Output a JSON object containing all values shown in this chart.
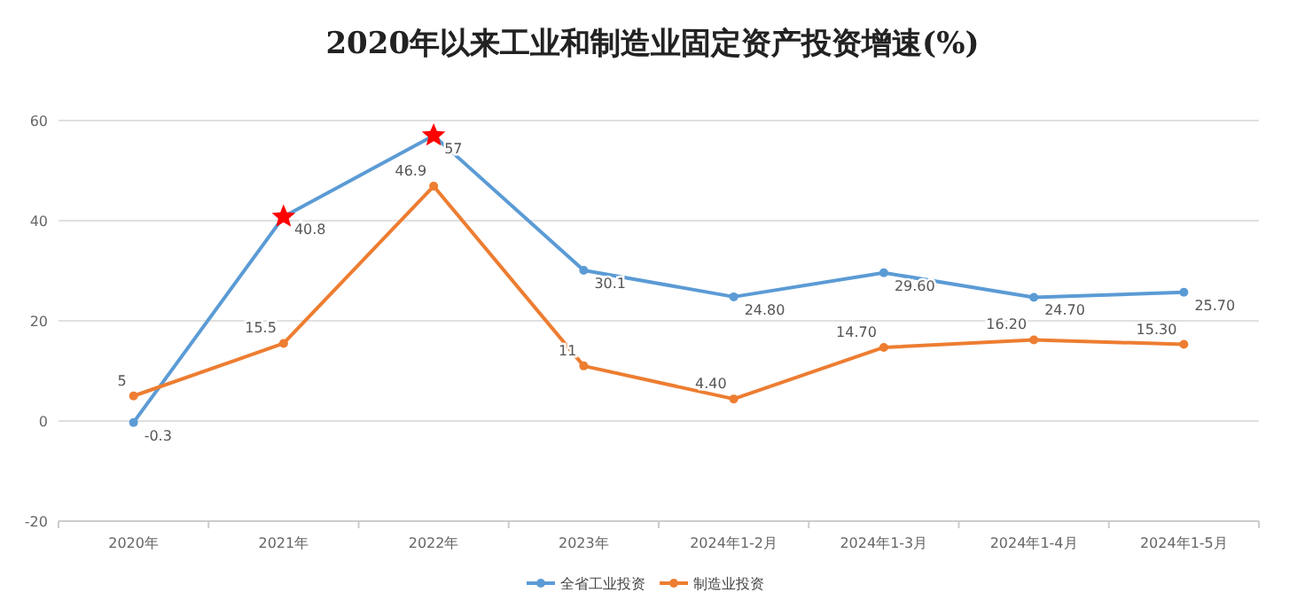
{
  "chart_data": {
    "type": "line",
    "title": "2020年以来工业和制造业固定资产投资增速(%)",
    "categories": [
      "2020年",
      "2021年",
      "2022年",
      "2023年",
      "2024年1-2月",
      "2024年1-3月",
      "2024年1-4月",
      "2024年1-5月"
    ],
    "series": [
      {
        "name": "全省工业投资",
        "color": "#5b9bd5",
        "values": [
          -0.3,
          40.8,
          57,
          30.1,
          24.8,
          29.6,
          24.7,
          25.7
        ],
        "value_labels": [
          "-0.3",
          "40.8",
          "57",
          "30.1",
          "24.80",
          "29.60",
          "24.70",
          "25.70"
        ]
      },
      {
        "name": "制造业投资",
        "color": "#ed7d31",
        "values": [
          5,
          15.5,
          46.9,
          11,
          4.4,
          14.7,
          16.2,
          15.3
        ],
        "value_labels": [
          "5",
          "15.5",
          "46.9",
          "11",
          "4.40",
          "14.70",
          "16.20",
          "15.30"
        ]
      },
      {
        "type": "scatter",
        "marker": "star",
        "color": "#ff0000",
        "x": [
          "2021年",
          "2022年"
        ],
        "values": [
          40.8,
          57
        ]
      }
    ],
    "ylim": [
      -20,
      60
    ],
    "yticks": [
      -20,
      0,
      20,
      40,
      60
    ],
    "grid": "y",
    "legend": "bottom",
    "marker": "circle",
    "line_style": "solid"
  }
}
